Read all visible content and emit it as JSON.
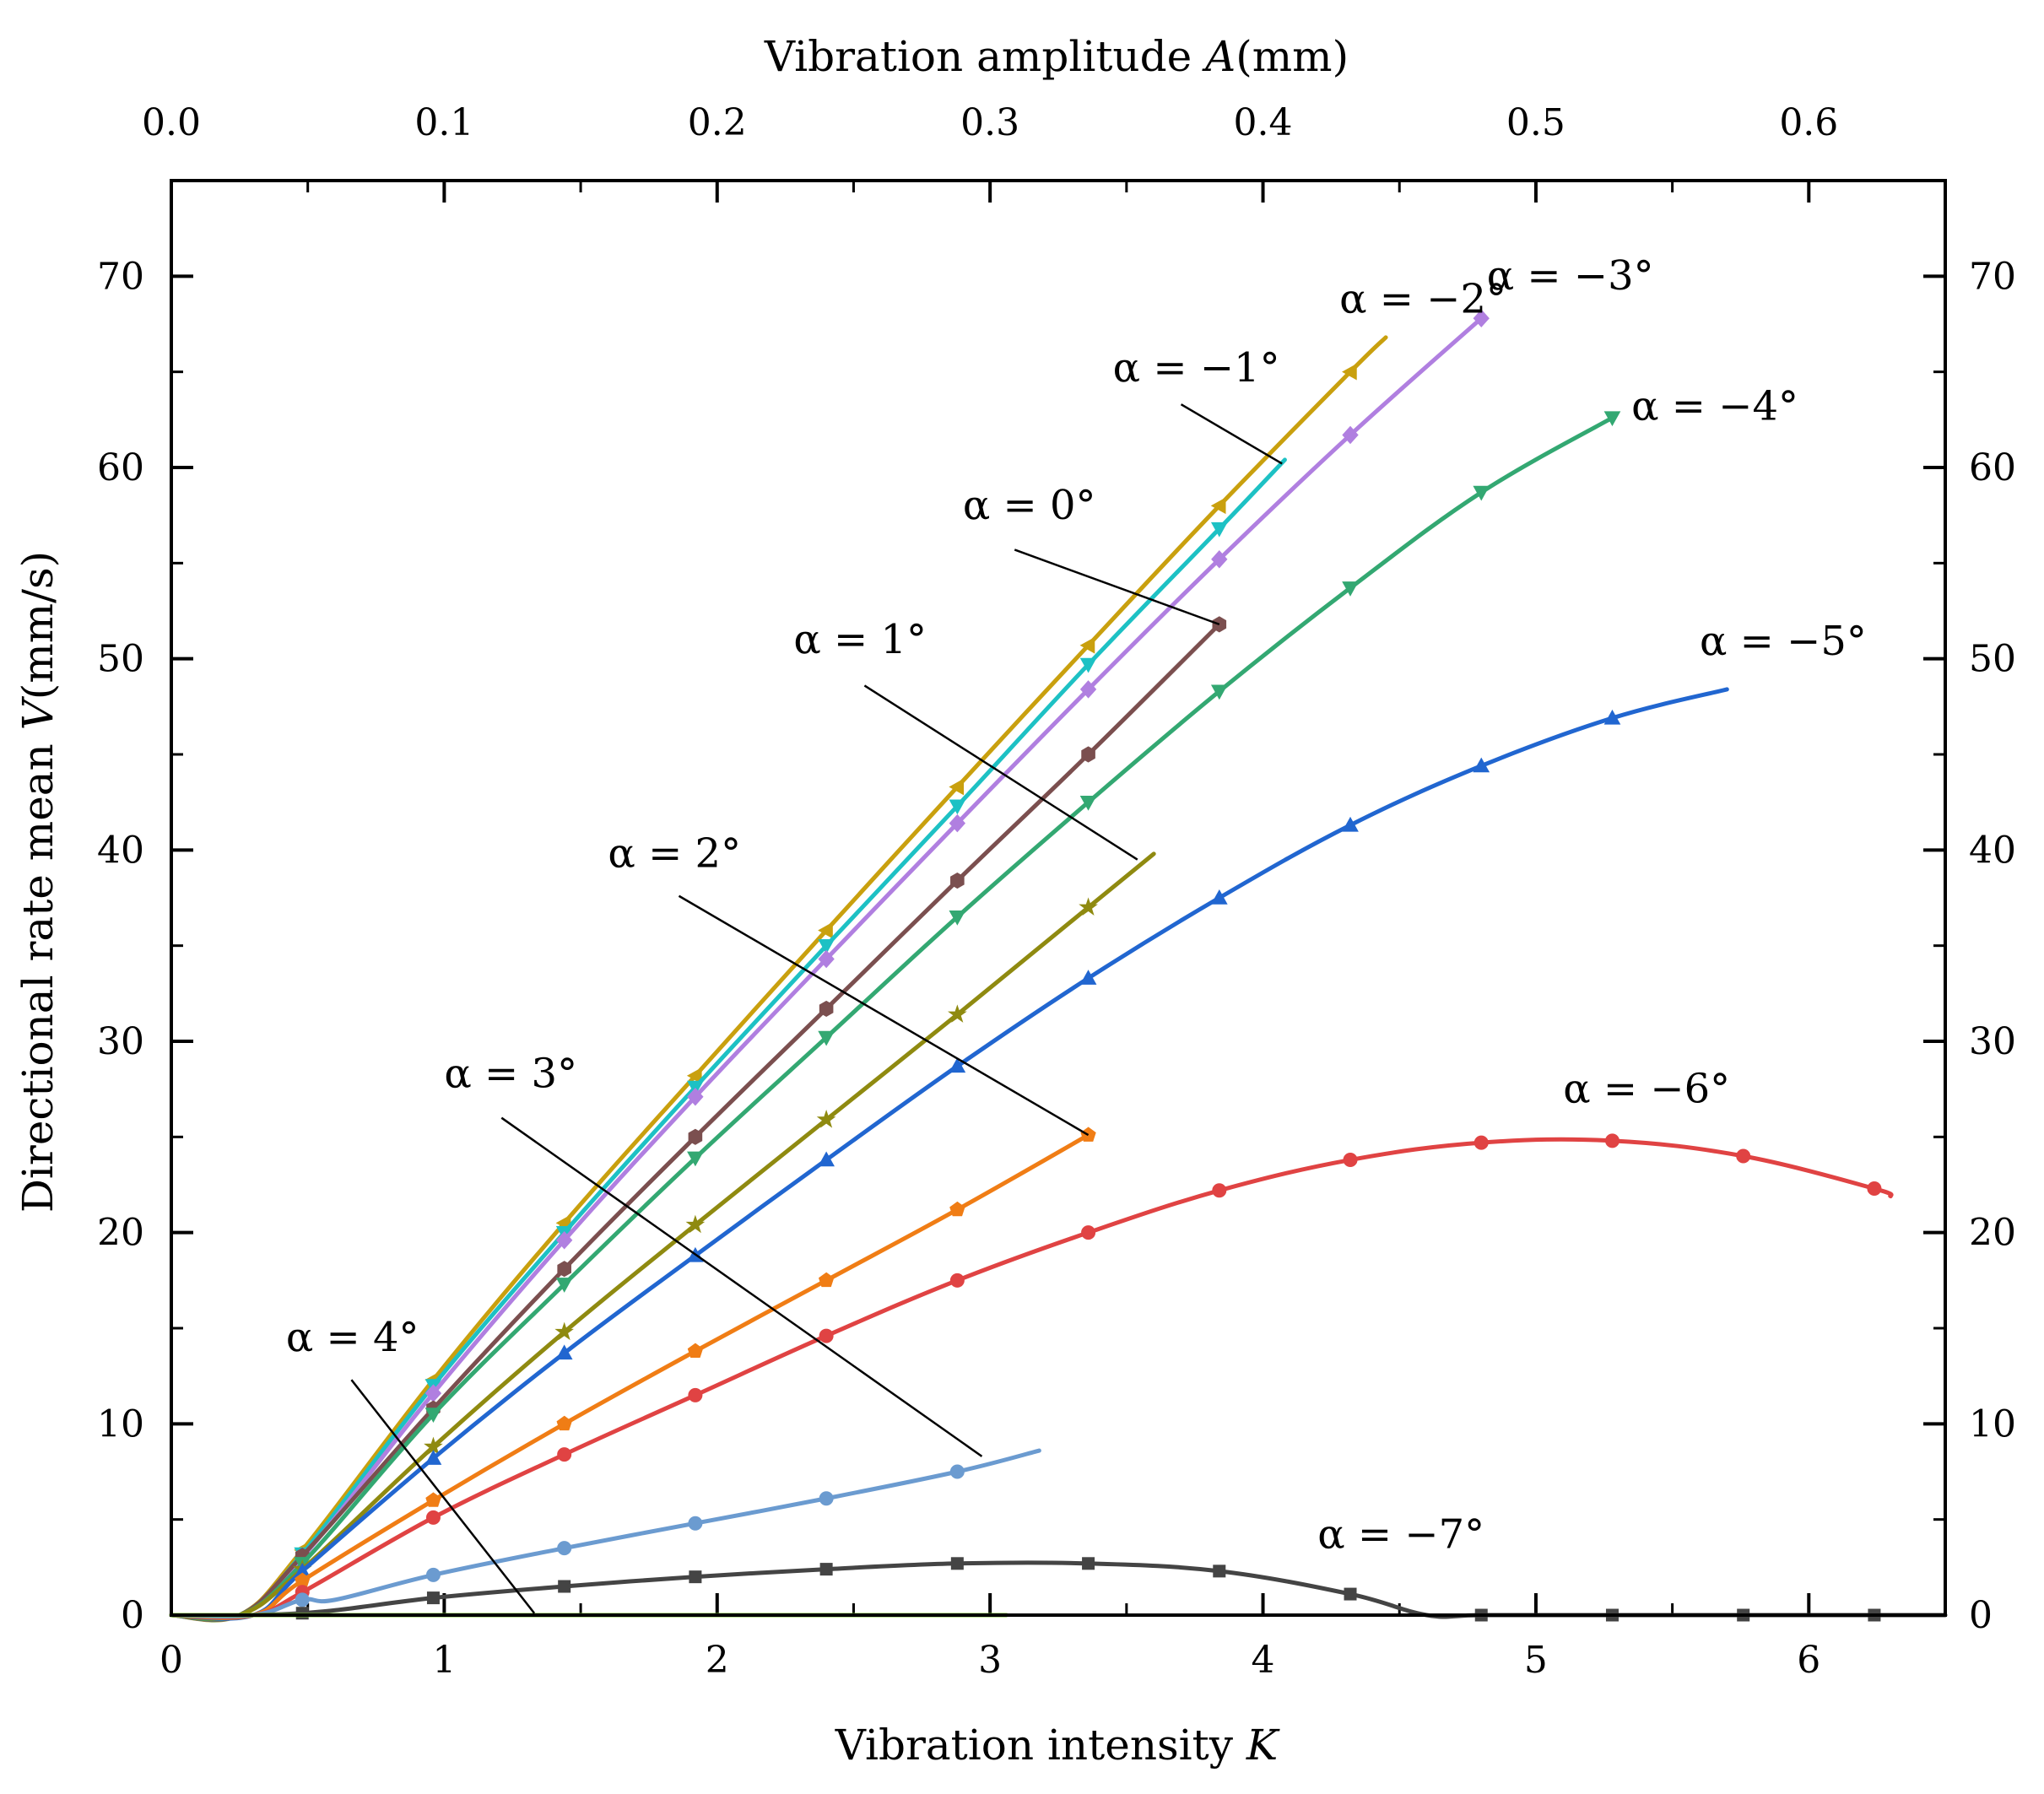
{
  "chart_data": {
    "type": "line",
    "xlabel_prefix": "Vibration intensity ",
    "xlabel_var": "K",
    "top_xlabel_prefix": "Vibration amplitude ",
    "top_xlabel_var": "A",
    "top_xlabel_suffix": "(mm)",
    "ylabel_prefix": "Directional rate mean ",
    "ylabel_var": "V",
    "ylabel_suffix": "(mm/s)",
    "xlim": [
      0,
      6.5
    ],
    "ylim": [
      0,
      75
    ],
    "top_xlim": [
      0,
      0.65
    ],
    "x_ticks": [
      "0",
      "1",
      "2",
      "3",
      "4",
      "5",
      "6"
    ],
    "top_x_ticks": [
      "0.0",
      "0.1",
      "0.2",
      "0.3",
      "0.4",
      "0.5",
      "0.6"
    ],
    "y_ticks": [
      "0",
      "10",
      "20",
      "30",
      "40",
      "50",
      "60",
      "70"
    ],
    "grid": false,
    "legend": "none (series labelled directly on plot)",
    "series": [
      {
        "name": "α = −2°",
        "color": "#C9A00E",
        "marker": "triangle-left",
        "x": [
          0,
          0.25,
          0.48,
          0.96,
          1.44,
          1.92,
          2.4,
          2.88,
          3.36,
          3.84,
          4.32,
          4.45
        ],
        "y": [
          0,
          0,
          3.4,
          12.3,
          20.5,
          28.2,
          35.8,
          43.3,
          50.7,
          58.0,
          65.0,
          66.8
        ]
      },
      {
        "name": "α = −1°",
        "color": "#1DC1C4",
        "marker": "triangle-down",
        "x": [
          0,
          0.25,
          0.48,
          0.96,
          1.44,
          1.92,
          2.4,
          2.88,
          3.36,
          3.84,
          4.08
        ],
        "y": [
          0,
          0,
          3.2,
          12.0,
          20.0,
          27.6,
          35.0,
          42.3,
          49.7,
          56.8,
          60.4
        ]
      },
      {
        "name": "α = −3°",
        "color": "#B07FE0",
        "marker": "diamond",
        "x": [
          0,
          0.25,
          0.48,
          0.96,
          1.44,
          1.92,
          2.4,
          2.88,
          3.36,
          3.84,
          4.32,
          4.8
        ],
        "y": [
          0,
          0,
          3.0,
          11.6,
          19.6,
          27.1,
          34.3,
          41.4,
          48.4,
          55.2,
          61.7,
          67.8
        ]
      },
      {
        "name": "α = 0°",
        "color": "#7B4F4F",
        "marker": "hexagon",
        "x": [
          0,
          0.25,
          0.48,
          0.96,
          1.44,
          1.92,
          2.4,
          2.88,
          3.36,
          3.84
        ],
        "y": [
          0,
          0,
          3.1,
          10.8,
          18.1,
          25.0,
          31.7,
          38.4,
          45.0,
          51.8
        ]
      },
      {
        "name": "α = −4°",
        "color": "#33A872",
        "marker": "triangle-down",
        "x": [
          0,
          0.25,
          0.48,
          0.96,
          1.44,
          1.92,
          2.4,
          2.88,
          3.36,
          3.84,
          4.32,
          4.8,
          5.28
        ],
        "y": [
          0,
          0,
          2.7,
          10.5,
          17.3,
          23.9,
          30.2,
          36.5,
          42.5,
          48.3,
          53.7,
          58.7,
          62.6
        ]
      },
      {
        "name": "α = 1°",
        "color": "#8F8A10",
        "marker": "star",
        "x": [
          0,
          0.25,
          0.48,
          0.96,
          1.44,
          1.92,
          2.4,
          2.88,
          3.36,
          3.6
        ],
        "y": [
          0,
          0,
          2.4,
          8.8,
          14.8,
          20.4,
          25.9,
          31.4,
          37.0,
          39.8
        ]
      },
      {
        "name": "α = −5°",
        "color": "#2166D0",
        "marker": "triangle-up",
        "x": [
          0,
          0.3,
          0.48,
          0.96,
          1.44,
          1.92,
          2.4,
          2.88,
          3.36,
          3.84,
          4.32,
          4.8,
          5.28,
          5.7
        ],
        "y": [
          0,
          0,
          2.3,
          8.2,
          13.7,
          18.8,
          23.8,
          28.7,
          33.3,
          37.5,
          41.3,
          44.4,
          46.9,
          48.4
        ]
      },
      {
        "name": "α = 2°",
        "color": "#F07D15",
        "marker": "pentagon",
        "x": [
          0,
          0.3,
          0.48,
          0.96,
          1.44,
          1.92,
          2.4,
          2.88,
          3.36
        ],
        "y": [
          0,
          0,
          1.8,
          6.0,
          10.0,
          13.8,
          17.5,
          21.2,
          25.1
        ]
      },
      {
        "name": "α = −6°",
        "color": "#E04343",
        "marker": "circle",
        "x": [
          0,
          0.3,
          0.48,
          0.96,
          1.44,
          1.92,
          2.4,
          2.88,
          3.36,
          3.84,
          4.32,
          4.8,
          5.28,
          5.76,
          6.24,
          6.3
        ],
        "y": [
          0,
          0,
          1.2,
          5.1,
          8.4,
          11.5,
          14.6,
          17.5,
          20.0,
          22.2,
          23.8,
          24.7,
          24.8,
          24.0,
          22.3,
          21.9
        ]
      },
      {
        "name": "α = 3°",
        "color": "#6B9BD0",
        "marker": "circle",
        "x": [
          0,
          0.3,
          0.48,
          0.6,
          0.96,
          1.44,
          1.92,
          2.4,
          2.88,
          3.18
        ],
        "y": [
          0,
          0,
          0.8,
          0.8,
          2.1,
          3.5,
          4.8,
          6.1,
          7.5,
          8.6
        ]
      },
      {
        "name": "α = −7°",
        "color": "#444444",
        "marker": "square",
        "x": [
          0,
          0.48,
          0.96,
          1.44,
          1.92,
          2.4,
          2.88,
          3.36,
          3.84,
          4.32,
          4.6,
          4.8,
          5.28,
          5.76,
          6.24,
          6.5
        ],
        "y": [
          0,
          0.1,
          0.9,
          1.5,
          2.0,
          2.4,
          2.7,
          2.7,
          2.3,
          1.1,
          0,
          0,
          0,
          0,
          0,
          0
        ]
      },
      {
        "name": "α = 4°",
        "color": "#7DC832",
        "marker": "none",
        "x": [
          0,
          3.06
        ],
        "y": [
          0,
          0
        ]
      }
    ],
    "annotations": [
      {
        "text": "α = −2°",
        "at": [
          4.28,
          68.1
        ]
      },
      {
        "text": "α = −3°",
        "at": [
          4.82,
          69.3
        ]
      },
      {
        "text": "α = −1°",
        "at": [
          3.45,
          64.5
        ]
      },
      {
        "text": "α = −4°",
        "at": [
          5.35,
          62.5
        ]
      },
      {
        "text": "α = 0°",
        "at": [
          2.9,
          57.3
        ]
      },
      {
        "text": "α = −5°",
        "at": [
          5.6,
          50.2
        ]
      },
      {
        "text": "α = 1°",
        "at": [
          2.28,
          50.3
        ]
      },
      {
        "text": "α = 2°",
        "at": [
          1.6,
          39.1
        ]
      },
      {
        "text": "α = −6°",
        "at": [
          5.1,
          26.8
        ]
      },
      {
        "text": "α = 3°",
        "at": [
          1.0,
          27.6
        ]
      },
      {
        "text": "α = 4°",
        "at": [
          0.42,
          13.8
        ]
      },
      {
        "text": "α = −7°",
        "at": [
          4.2,
          3.5
        ]
      }
    ],
    "leaders": [
      {
        "from": [
          3.7,
          63.3
        ],
        "to": [
          4.07,
          60.2
        ]
      },
      {
        "from": [
          3.09,
          55.7
        ],
        "to": [
          3.84,
          51.8
        ]
      },
      {
        "from": [
          2.54,
          48.6
        ],
        "to": [
          3.54,
          39.5
        ]
      },
      {
        "from": [
          1.86,
          37.6
        ],
        "to": [
          3.36,
          25.1
        ]
      },
      {
        "from": [
          1.21,
          26.0
        ],
        "to": [
          2.97,
          8.3
        ]
      },
      {
        "from": [
          0.66,
          12.3
        ],
        "to": [
          1.33,
          0.1
        ]
      }
    ]
  }
}
